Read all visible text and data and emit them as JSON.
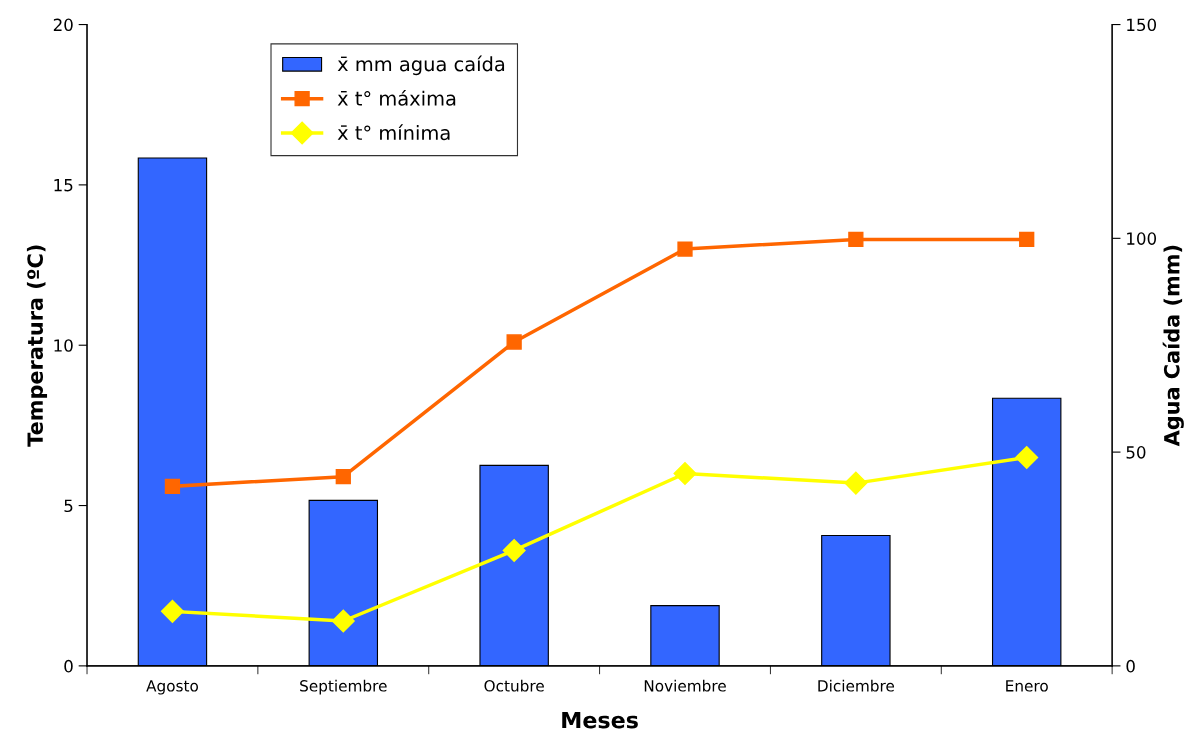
{
  "chart_data": {
    "type": "bar",
    "xlabel": "Meses",
    "ylabel": "Temperatura (ºC)",
    "y2label": "Agua Caída (mm)",
    "categories": [
      "Agosto",
      "Septiembre",
      "Octubre",
      "Noviembre",
      "Diciembre",
      "Enero"
    ],
    "series": [
      {
        "name": "x̄ mm agua caída",
        "axis": "y2",
        "color": "#3366ff",
        "values": [
          118.8,
          38.7,
          46.9,
          14.1,
          30.5,
          62.6
        ]
      },
      {
        "name": "x̄ t° máxima",
        "type": "line",
        "marker": "square",
        "color": "#ff6600",
        "values": [
          5.6,
          5.9,
          10.1,
          13.0,
          13.3,
          13.3
        ]
      },
      {
        "name": "x̄ t° mínima",
        "type": "line",
        "marker": "diamond",
        "color": "#ffff00",
        "values": [
          1.7,
          1.4,
          3.6,
          6.0,
          5.7,
          6.5
        ]
      }
    ],
    "ylim": [
      0,
      20
    ],
    "yticks": [
      0,
      5,
      10,
      15,
      20
    ],
    "y2lim": [
      0,
      150
    ],
    "y2ticks": [
      0,
      50,
      100,
      150
    ],
    "grid": false,
    "legend": "top left",
    "line_style": "solid"
  }
}
